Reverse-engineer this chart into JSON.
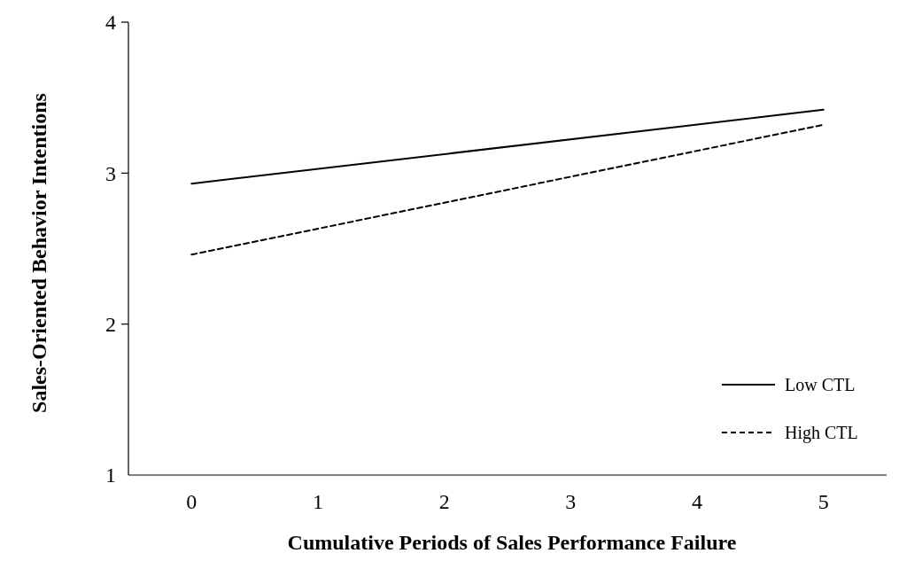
{
  "chart_data": {
    "type": "line",
    "xlabel": "Cumulative Periods of Sales Performance Failure",
    "ylabel": "Sales-Oriented Behavior Intentions",
    "x": [
      0,
      5
    ],
    "xlim": [
      -0.5,
      5.5
    ],
    "xticks": [
      0,
      1,
      2,
      3,
      4,
      5
    ],
    "ylim": [
      1,
      4
    ],
    "yticks": [
      1,
      2,
      3,
      4
    ],
    "legend": "bottom right",
    "grid": false,
    "marker": "none",
    "series": [
      {
        "name": "Low CTL",
        "color": "#000000",
        "line_style": "solid",
        "values": [
          2.93,
          3.42
        ]
      },
      {
        "name": "High CTL",
        "color": "#000000",
        "line_style": "dashed",
        "values": [
          2.46,
          3.32
        ]
      }
    ]
  }
}
